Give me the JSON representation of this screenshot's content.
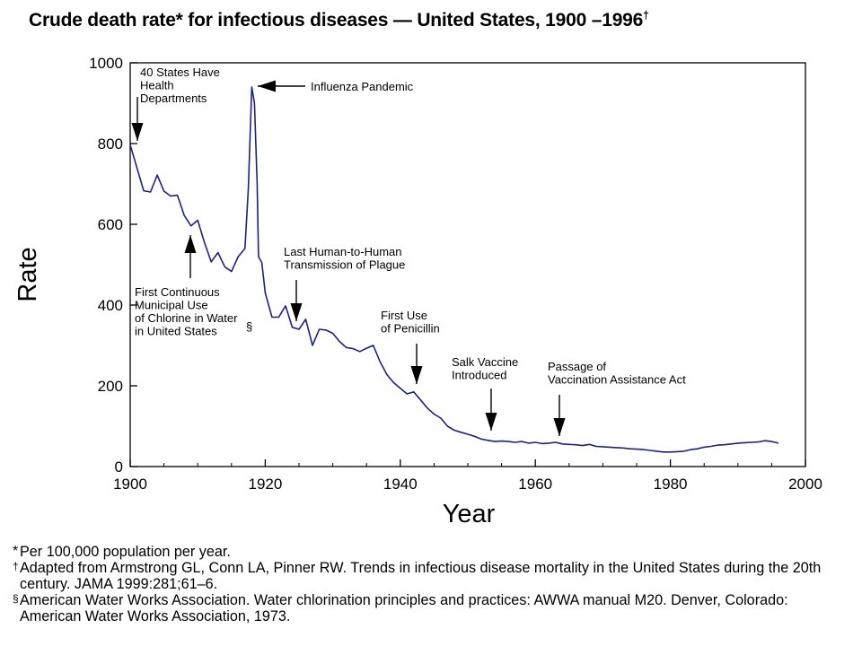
{
  "chart_data": {
    "type": "line",
    "title": "Crude death rate* for infectious diseases — United States, 1900 –1996",
    "title_mark": "†",
    "xlabel": "Year",
    "ylabel": "Rate",
    "xlim": [
      1900,
      2000
    ],
    "ylim": [
      0,
      1000
    ],
    "x_ticks": [
      "1900",
      "1920",
      "1940",
      "1960",
      "1980",
      "2000"
    ],
    "y_ticks": [
      "0",
      "200",
      "400",
      "600",
      "800",
      "1000"
    ],
    "grid": false,
    "line_color": "#1a237e",
    "series": [
      {
        "x": [
          1900,
          1901,
          1902,
          1903,
          1904,
          1905,
          1906,
          1907,
          1908,
          1909,
          1910,
          1911,
          1912,
          1913,
          1914,
          1915,
          1916,
          1917,
          1917.5,
          1918,
          1918.4,
          1918.8,
          1919,
          1919.5,
          1920,
          1921,
          1922,
          1923,
          1924,
          1925,
          1926,
          1927,
          1928,
          1929,
          1930,
          1931,
          1932,
          1933,
          1934,
          1935,
          1936,
          1937,
          1938,
          1939,
          1940,
          1941,
          1942,
          1943,
          1944,
          1945,
          1946,
          1947,
          1948,
          1949,
          1950,
          1951,
          1952,
          1953,
          1954,
          1955,
          1956,
          1957,
          1958,
          1959,
          1960,
          1961,
          1962,
          1963,
          1964,
          1965,
          1966,
          1967,
          1968,
          1969,
          1970,
          1971,
          1972,
          1973,
          1974,
          1975,
          1976,
          1977,
          1978,
          1979,
          1980,
          1981,
          1982,
          1983,
          1984,
          1985,
          1986,
          1987,
          1988,
          1989,
          1990,
          1991,
          1992,
          1993,
          1994,
          1995,
          1996
        ],
        "y": [
          797,
          740,
          683,
          680,
          722,
          682,
          670,
          672,
          622,
          596,
          610,
          555,
          507,
          530,
          495,
          483,
          520,
          540,
          690,
          940,
          900,
          700,
          520,
          505,
          430,
          370,
          370,
          398,
          345,
          340,
          365,
          300,
          340,
          338,
          330,
          310,
          295,
          292,
          285,
          293,
          300,
          260,
          228,
          208,
          194,
          180,
          185,
          165,
          145,
          130,
          120,
          100,
          90,
          85,
          80,
          75,
          68,
          65,
          62,
          63,
          62,
          60,
          62,
          58,
          60,
          57,
          58,
          60,
          56,
          55,
          54,
          52,
          55,
          50,
          49,
          48,
          47,
          46,
          44,
          43,
          42,
          40,
          38,
          36,
          36,
          37,
          38,
          42,
          44,
          48,
          50,
          53,
          54,
          56,
          58,
          59,
          60,
          61,
          64,
          62,
          58
        ]
      }
    ],
    "annotations": [
      {
        "year": 1901,
        "lines": [
          "40 States Have",
          "Health",
          "Departments"
        ]
      },
      {
        "year": 1918,
        "lines": [
          "Influenza Pandemic"
        ]
      },
      {
        "year": 1909,
        "lines": [
          "First Continuous",
          "Municipal Use",
          "of Chlorine in Water",
          "in United States"
        ],
        "mark": "§"
      },
      {
        "year": 1925,
        "lines": [
          "Last Human-to-Human",
          "Transmission of Plague"
        ]
      },
      {
        "year": 1942,
        "lines": [
          "First Use",
          "of Penicillin"
        ]
      },
      {
        "year": 1953,
        "lines": [
          "Salk Vaccine",
          "Introduced"
        ]
      },
      {
        "year": 1963,
        "lines": [
          "Passage of",
          "Vaccination Assistance Act"
        ]
      }
    ]
  },
  "footnotes": [
    {
      "mark": "*",
      "text": "Per 100,000 population per year."
    },
    {
      "mark": "†",
      "text": "Adapted from Armstrong GL, Conn LA, Pinner RW. Trends in infectious disease mortality in the United States during the 20th century. JAMA 1999:281;61–6."
    },
    {
      "mark": "§",
      "text": "American Water Works Association. Water chlorination principles and practices: AWWA manual M20. Denver, Colorado: American Water Works Association, 1973."
    }
  ]
}
